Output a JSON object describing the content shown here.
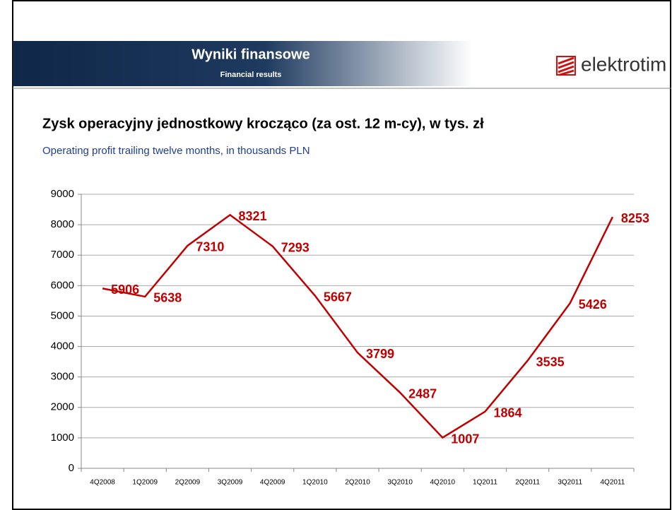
{
  "header": {
    "title": "Wyniki finansowe",
    "subtitle": "Financial results",
    "logo": "elektrotim"
  },
  "chart_data": {
    "type": "line",
    "title": "Zysk operacyjny jednostkowy krocząco (za ost. 12 m-cy), w tys. zł",
    "subtitle": "Operating profit trailing twelve months, in thousands PLN",
    "categories": [
      "4Q2008",
      "1Q2009",
      "2Q2009",
      "3Q2009",
      "4Q2009",
      "1Q2010",
      "2Q2010",
      "3Q2010",
      "4Q2010",
      "1Q2011",
      "2Q2011",
      "3Q2011",
      "4Q2011"
    ],
    "values": [
      5906,
      5638,
      7310,
      8321,
      7293,
      5667,
      3799,
      2487,
      1007,
      1864,
      3535,
      5426,
      8253
    ],
    "color": "#c00000",
    "ylim": [
      0,
      9000
    ],
    "yticks": [
      0,
      1000,
      2000,
      3000,
      4000,
      5000,
      6000,
      7000,
      8000,
      9000
    ],
    "grid": true
  }
}
